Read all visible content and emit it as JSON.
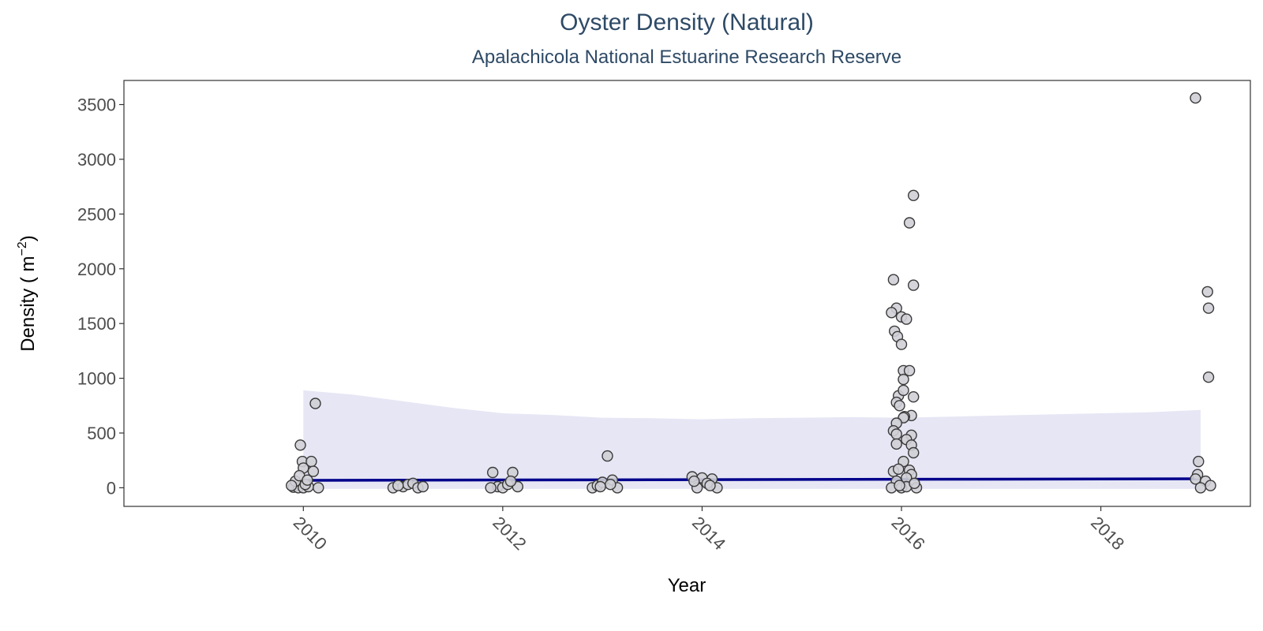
{
  "chart_data": {
    "type": "scatter",
    "title": "Oyster Density (Natural)",
    "subtitle": "Apalachicola National Estuarine Research Reserve",
    "xlabel": "Year",
    "ylabel": "Density ( m⁻² )",
    "ylabel_main": "Density ( m",
    "ylabel_sup": "−2",
    "ylabel_close": ")",
    "xlim": [
      2008.2,
      2019.5
    ],
    "ylim": [
      -170,
      3720
    ],
    "x_ticks": [
      2010,
      2012,
      2014,
      2016,
      2018
    ],
    "y_ticks": [
      0,
      500,
      1000,
      1500,
      2000,
      2500,
      3000,
      3500
    ],
    "grid": false,
    "legend": "none",
    "colors": {
      "point_fill": "#cfcfd6",
      "point_stroke": "#3a3a3a",
      "trend_line": "#00008b",
      "confidence_band": "#e6e6f5",
      "title": "#2e4a66"
    },
    "series": [
      {
        "type": "scatter",
        "points": [
          [
            2009.9,
            5
          ],
          [
            2009.95,
            0
          ],
          [
            2010.0,
            0
          ],
          [
            2010.05,
            10
          ],
          [
            2009.92,
            60
          ],
          [
            2010.02,
            30
          ],
          [
            2009.97,
            390
          ],
          [
            2009.99,
            240
          ],
          [
            2010.0,
            180
          ],
          [
            2010.12,
            770
          ],
          [
            2010.08,
            240
          ],
          [
            2010.1,
            150
          ],
          [
            2009.96,
            110
          ],
          [
            2010.04,
            70
          ],
          [
            2010.15,
            0
          ],
          [
            2009.88,
            20
          ],
          [
            2010.9,
            0
          ],
          [
            2011.0,
            10
          ],
          [
            2011.05,
            30
          ],
          [
            2011.1,
            40
          ],
          [
            2011.15,
            0
          ],
          [
            2011.2,
            10
          ],
          [
            2010.95,
            20
          ],
          [
            2011.9,
            140
          ],
          [
            2012.1,
            140
          ],
          [
            2011.95,
            10
          ],
          [
            2012.0,
            0
          ],
          [
            2012.05,
            30
          ],
          [
            2012.15,
            10
          ],
          [
            2011.88,
            0
          ],
          [
            2012.08,
            60
          ],
          [
            2013.05,
            290
          ],
          [
            2012.9,
            0
          ],
          [
            2012.95,
            20
          ],
          [
            2013.0,
            50
          ],
          [
            2013.1,
            70
          ],
          [
            2013.15,
            0
          ],
          [
            2012.98,
            10
          ],
          [
            2013.08,
            30
          ],
          [
            2013.9,
            100
          ],
          [
            2014.0,
            90
          ],
          [
            2014.1,
            80
          ],
          [
            2013.95,
            0
          ],
          [
            2014.05,
            40
          ],
          [
            2014.15,
            0
          ],
          [
            2013.92,
            60
          ],
          [
            2014.08,
            20
          ],
          [
            2016.12,
            2670
          ],
          [
            2016.08,
            2420
          ],
          [
            2015.92,
            1900
          ],
          [
            2016.12,
            1850
          ],
          [
            2015.95,
            1640
          ],
          [
            2015.9,
            1600
          ],
          [
            2016.0,
            1560
          ],
          [
            2016.05,
            1540
          ],
          [
            2015.93,
            1430
          ],
          [
            2015.96,
            1380
          ],
          [
            2016.0,
            1310
          ],
          [
            2016.02,
            1070
          ],
          [
            2016.08,
            1070
          ],
          [
            2016.02,
            990
          ],
          [
            2015.97,
            840
          ],
          [
            2016.02,
            890
          ],
          [
            2016.12,
            830
          ],
          [
            2015.95,
            780
          ],
          [
            2015.98,
            750
          ],
          [
            2016.1,
            660
          ],
          [
            2016.03,
            650
          ],
          [
            2016.02,
            640
          ],
          [
            2015.95,
            590
          ],
          [
            2015.92,
            520
          ],
          [
            2015.95,
            490
          ],
          [
            2016.1,
            480
          ],
          [
            2016.05,
            440
          ],
          [
            2015.95,
            400
          ],
          [
            2016.1,
            390
          ],
          [
            2016.12,
            320
          ],
          [
            2016.02,
            240
          ],
          [
            2015.92,
            150
          ],
          [
            2015.97,
            170
          ],
          [
            2016.08,
            160
          ],
          [
            2016.1,
            120
          ],
          [
            2016.05,
            90
          ],
          [
            2015.95,
            60
          ],
          [
            2016.0,
            0
          ],
          [
            2015.9,
            0
          ],
          [
            2016.15,
            0
          ],
          [
            2016.05,
            10
          ],
          [
            2015.98,
            20
          ],
          [
            2016.13,
            40
          ],
          [
            2018.95,
            3560
          ],
          [
            2019.07,
            1790
          ],
          [
            2019.08,
            1640
          ],
          [
            2019.08,
            1010
          ],
          [
            2018.98,
            240
          ],
          [
            2018.97,
            120
          ],
          [
            2018.95,
            80
          ],
          [
            2019.05,
            60
          ],
          [
            2019.0,
            0
          ],
          [
            2019.1,
            20
          ]
        ]
      },
      {
        "type": "line",
        "x": [
          2010.0,
          2019.0
        ],
        "y": [
          68,
          82
        ]
      },
      {
        "type": "area",
        "x": [
          2010.0,
          2010.5,
          2011.0,
          2011.5,
          2012.0,
          2012.5,
          2013.0,
          2013.5,
          2014.0,
          2014.5,
          2015.0,
          2015.5,
          2016.0,
          2016.5,
          2017.0,
          2017.5,
          2018.0,
          2018.5,
          2019.0
        ],
        "upper": [
          890,
          850,
          790,
          730,
          680,
          665,
          640,
          635,
          625,
          635,
          640,
          645,
          640,
          650,
          660,
          670,
          680,
          690,
          710
        ],
        "lower": [
          -10,
          -10,
          -10,
          -10,
          -10,
          -10,
          -10,
          -10,
          -10,
          -10,
          -10,
          -10,
          -10,
          -10,
          -10,
          -10,
          -10,
          -10,
          -10
        ]
      }
    ]
  }
}
